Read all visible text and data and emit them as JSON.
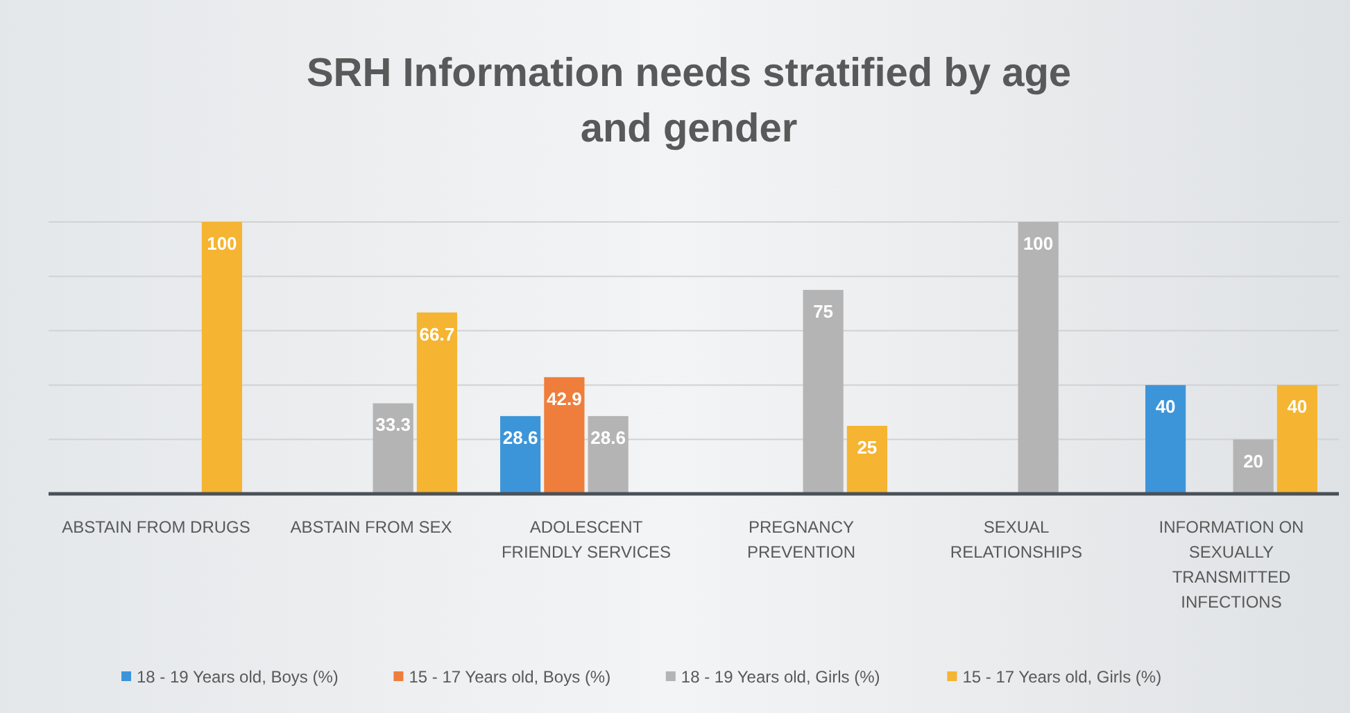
{
  "chart_data": {
    "type": "bar",
    "title": "SRH Information needs stratified by age and gender",
    "categories": [
      "ABSTAIN FROM DRUGS",
      "ABSTAIN FROM SEX",
      "ADOLESCENT FRIENDLY SERVICES",
      "PREGNANCY PREVENTION",
      "SEXUAL RELATIONSHIPS",
      "INFORMATION ON SEXUALLY TRANSMITTED INFECTIONS"
    ],
    "series": [
      {
        "name": "18 - 19 Years old, Boys (%)",
        "color": "#3d95d9",
        "values": [
          null,
          null,
          28.6,
          null,
          null,
          40
        ]
      },
      {
        "name": "15 - 17 Years old, Boys (%)",
        "color": "#ef7d3b",
        "values": [
          null,
          null,
          42.9,
          null,
          null,
          null
        ]
      },
      {
        "name": "18 - 19 Years old, Girls (%)",
        "color": "#b4b4b4",
        "values": [
          null,
          33.3,
          28.6,
          75,
          100,
          20
        ]
      },
      {
        "name": "15 - 17 Years old, Girls (%)",
        "color": "#f5b431",
        "values": [
          100,
          66.7,
          null,
          25,
          null,
          40
        ]
      }
    ],
    "ylim": [
      0,
      100
    ],
    "yticks": [
      {
        "value": 0,
        "label": null
      },
      {
        "value": 20,
        "label": null
      },
      {
        "value": 40,
        "label": null
      },
      {
        "value": 60,
        "label": null
      },
      {
        "value": 80,
        "label": null
      },
      {
        "value": 100,
        "label": null
      }
    ],
    "grid": "y",
    "tick_labels": "x",
    "data_labels": true,
    "legend": "bottom"
  }
}
